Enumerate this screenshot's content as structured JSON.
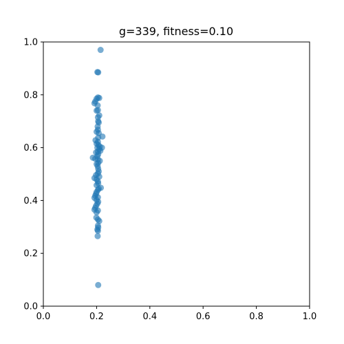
{
  "chart_data": {
    "type": "scatter",
    "title": "g=339, fitness=0.10",
    "xlabel": "",
    "ylabel": "",
    "xlim": [
      0.0,
      1.0
    ],
    "ylim": [
      0.0,
      1.0
    ],
    "x_ticks": [
      "0.0",
      "0.2",
      "0.4",
      "0.6",
      "0.8",
      "1.0"
    ],
    "y_ticks": [
      "0.0",
      "0.2",
      "0.4",
      "0.6",
      "0.8",
      "1.0"
    ],
    "grid": false,
    "marker_color": "#1f77b4",
    "marker_alpha": 0.6,
    "series": [
      {
        "points": [
          [
            0.215,
            0.97
          ],
          [
            0.206,
            0.885
          ],
          [
            0.203,
            0.886
          ],
          [
            0.206,
            0.08
          ],
          [
            0.205,
            0.79
          ],
          [
            0.2,
            0.785
          ],
          [
            0.21,
            0.788
          ],
          [
            0.195,
            0.775
          ],
          [
            0.192,
            0.768
          ],
          [
            0.204,
            0.76
          ],
          [
            0.205,
            0.742
          ],
          [
            0.2,
            0.74
          ],
          [
            0.21,
            0.722
          ],
          [
            0.205,
            0.715
          ],
          [
            0.206,
            0.7
          ],
          [
            0.208,
            0.695
          ],
          [
            0.204,
            0.68
          ],
          [
            0.205,
            0.668
          ],
          [
            0.2,
            0.66
          ],
          [
            0.208,
            0.655
          ],
          [
            0.222,
            0.642
          ],
          [
            0.206,
            0.638
          ],
          [
            0.196,
            0.628
          ],
          [
            0.205,
            0.622
          ],
          [
            0.2,
            0.615
          ],
          [
            0.207,
            0.61
          ],
          [
            0.212,
            0.604
          ],
          [
            0.203,
            0.6
          ],
          [
            0.22,
            0.6
          ],
          [
            0.21,
            0.595
          ],
          [
            0.214,
            0.588
          ],
          [
            0.205,
            0.585
          ],
          [
            0.198,
            0.582
          ],
          [
            0.206,
            0.575
          ],
          [
            0.203,
            0.568
          ],
          [
            0.186,
            0.562
          ],
          [
            0.195,
            0.558
          ],
          [
            0.205,
            0.555
          ],
          [
            0.212,
            0.55
          ],
          [
            0.206,
            0.542
          ],
          [
            0.2,
            0.538
          ],
          [
            0.204,
            0.53
          ],
          [
            0.206,
            0.52
          ],
          [
            0.208,
            0.51
          ],
          [
            0.205,
            0.502
          ],
          [
            0.198,
            0.496
          ],
          [
            0.21,
            0.49
          ],
          [
            0.192,
            0.485
          ],
          [
            0.2,
            0.48
          ],
          [
            0.205,
            0.472
          ],
          [
            0.206,
            0.465
          ],
          [
            0.2,
            0.458
          ],
          [
            0.216,
            0.448
          ],
          [
            0.208,
            0.445
          ],
          [
            0.205,
            0.44
          ],
          [
            0.2,
            0.432
          ],
          [
            0.198,
            0.425
          ],
          [
            0.195,
            0.418
          ],
          [
            0.205,
            0.412
          ],
          [
            0.192,
            0.41
          ],
          [
            0.2,
            0.402
          ],
          [
            0.206,
            0.395
          ],
          [
            0.203,
            0.388
          ],
          [
            0.198,
            0.38
          ],
          [
            0.195,
            0.372
          ],
          [
            0.192,
            0.365
          ],
          [
            0.205,
            0.362
          ],
          [
            0.2,
            0.355
          ],
          [
            0.199,
            0.335
          ],
          [
            0.205,
            0.328
          ],
          [
            0.21,
            0.322
          ],
          [
            0.205,
            0.305
          ],
          [
            0.206,
            0.298
          ],
          [
            0.203,
            0.29
          ],
          [
            0.205,
            0.285
          ],
          [
            0.204,
            0.265
          ]
        ]
      }
    ]
  }
}
